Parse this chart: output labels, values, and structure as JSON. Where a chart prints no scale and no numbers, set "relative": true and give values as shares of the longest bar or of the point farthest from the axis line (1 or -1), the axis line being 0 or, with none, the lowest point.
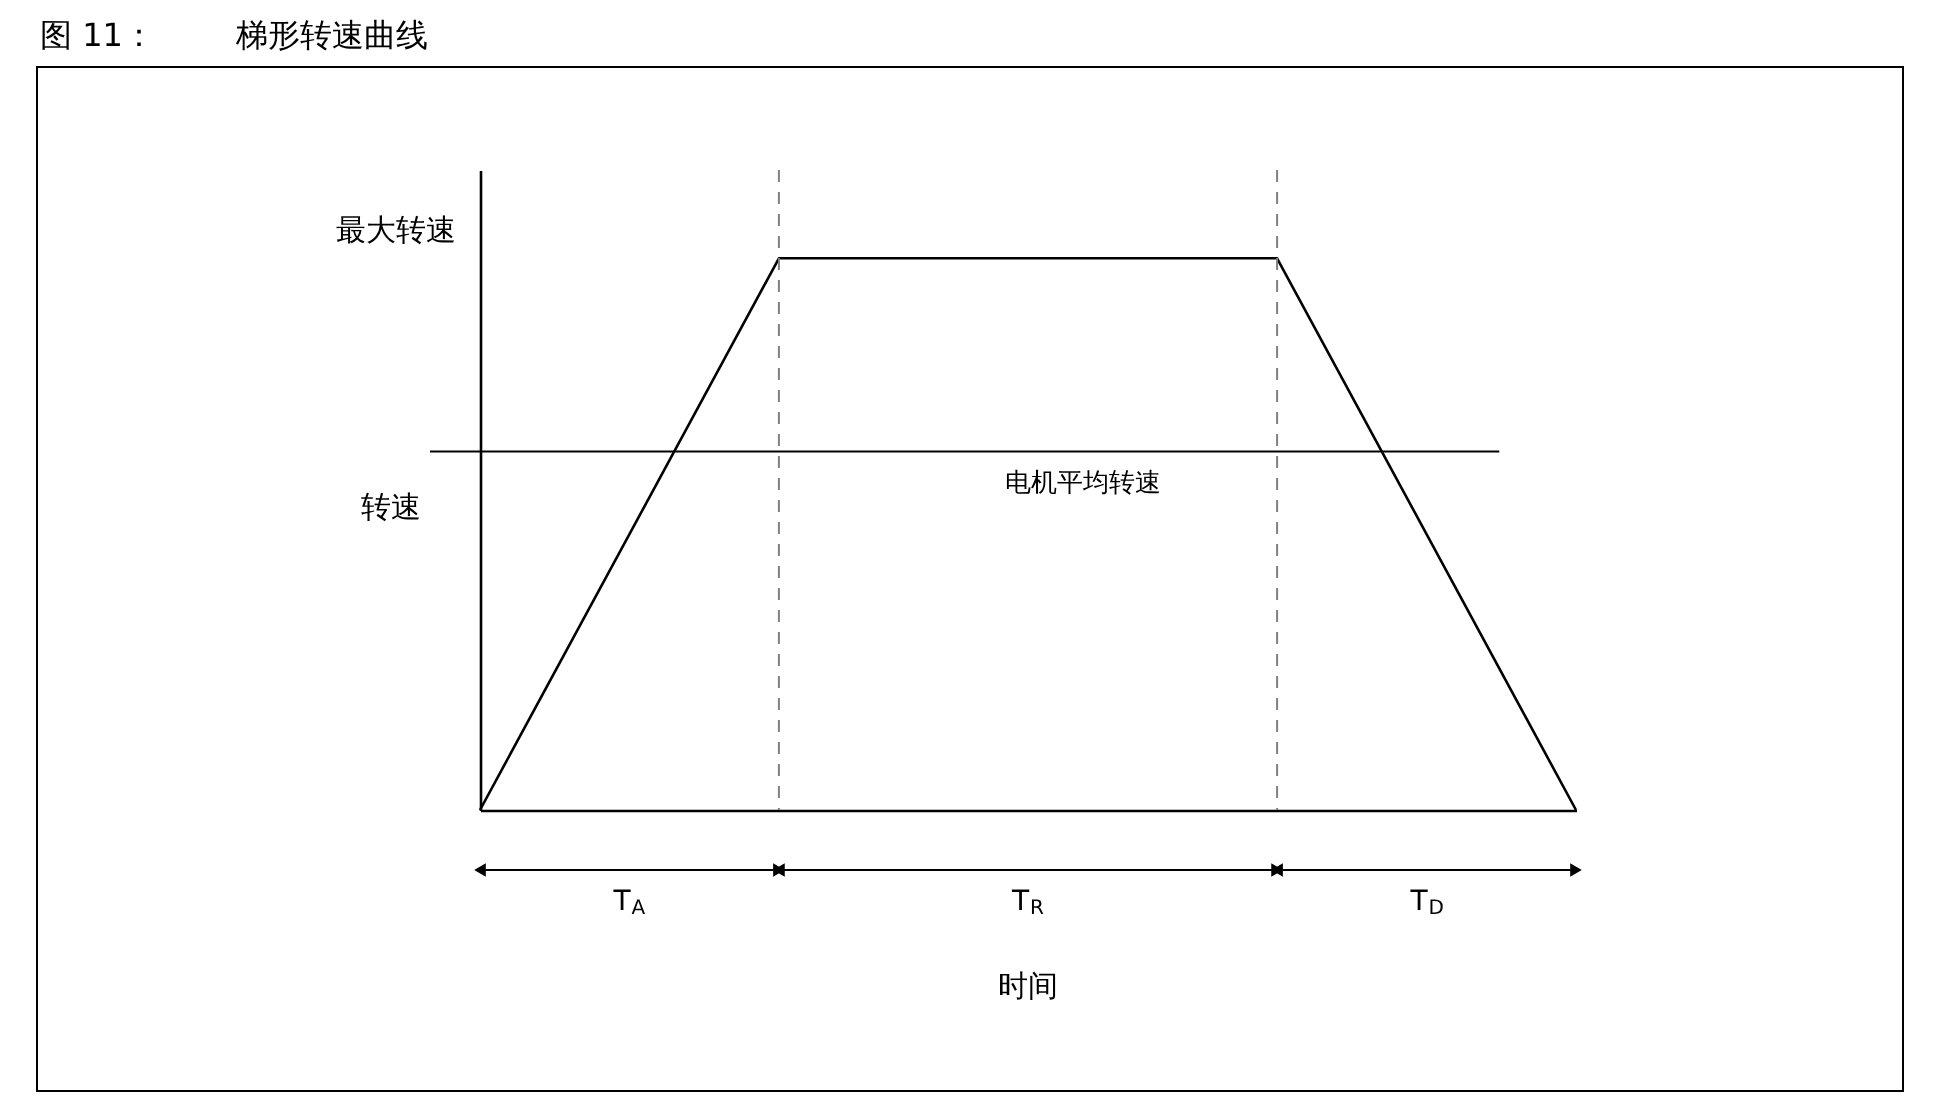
{
  "chart_data": {
    "type": "line",
    "title": "图 11：        梯形转速曲线",
    "ylabel": "转速",
    "relative": true,
    "grid": false,
    "marker": "none",
    "line_style": "solid",
    "categories": [
      null,
      null,
      null,
      null,
      null,
      null,
      null,
      null,
      null,
      null,
      null,
      null
    ],
    "series": [
      {
        "color": "#000000",
        "values": [
          0,
          null,
          null,
          1,
          null,
          null,
          null,
          null,
          1,
          null,
          null,
          0
        ]
      }
    ],
    "ref_lines": [
      {
        "axis": "y",
        "value": 0.65,
        "label": "电机平均转速",
        "color": "#000000",
        "line_style": "solid"
      }
    ],
    "annotations": [
      "最大转速",
      "T$_{A}$",
      "T$_{R}$",
      "T$_{D}$",
      "时间"
    ]
  }
}
